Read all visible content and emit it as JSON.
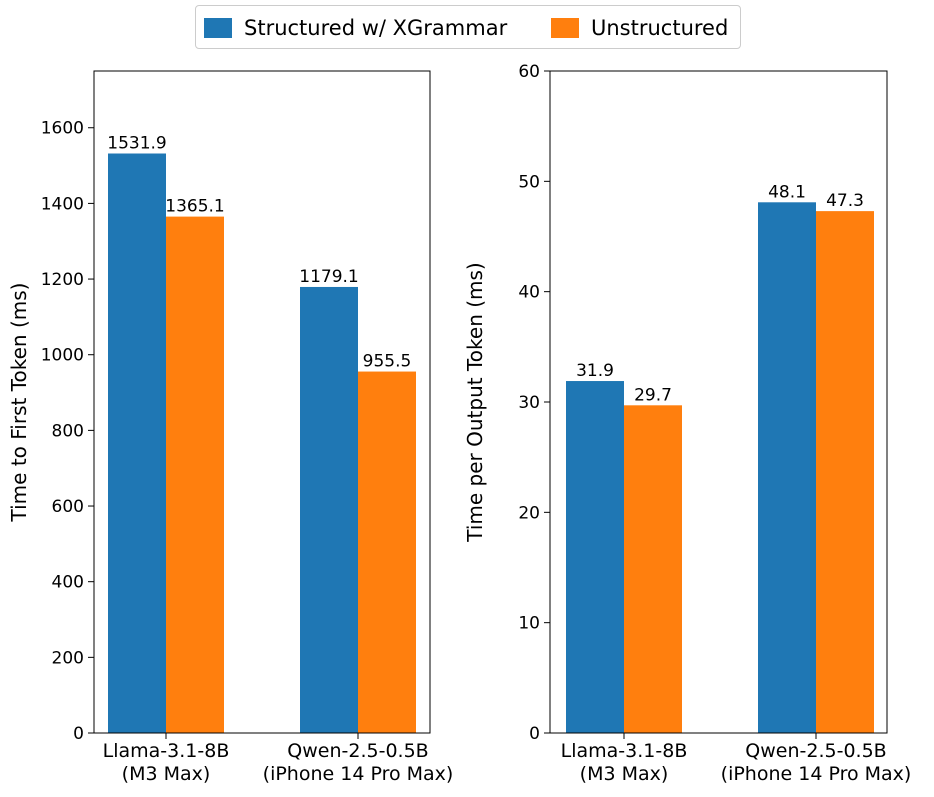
{
  "colors": {
    "structured": "#1f77b4",
    "unstructured": "#ff7f0e"
  },
  "legend": {
    "items": [
      {
        "key": "structured",
        "label": "Structured w/ XGrammar"
      },
      {
        "key": "unstructured",
        "label": "Unstructured"
      }
    ]
  },
  "chart_data": [
    {
      "type": "bar",
      "categories": [
        "Llama-3.1-8B\n(M3 Max)",
        "Qwen-2.5-0.5B\n(iPhone 14 Pro Max)"
      ],
      "series": [
        {
          "name": "Structured w/ XGrammar",
          "key": "structured",
          "values": [
            1531.9,
            1179.1
          ]
        },
        {
          "name": "Unstructured",
          "key": "unstructured",
          "values": [
            1365.1,
            955.5
          ]
        }
      ],
      "data_labels": [
        [
          "1531.9",
          "1179.1"
        ],
        [
          "1365.1",
          "955.5"
        ]
      ],
      "ylabel": "Time to First Token (ms)",
      "xlabel": "",
      "ylim": [
        0,
        1750
      ],
      "yticks": [
        "0",
        "200",
        "400",
        "600",
        "800",
        "1000",
        "1200",
        "1400",
        "1600"
      ]
    },
    {
      "type": "bar",
      "categories": [
        "Llama-3.1-8B\n(M3 Max)",
        "Qwen-2.5-0.5B\n(iPhone 14 Pro Max)"
      ],
      "series": [
        {
          "name": "Structured w/ XGrammar",
          "key": "structured",
          "values": [
            31.9,
            48.1
          ]
        },
        {
          "name": "Unstructured",
          "key": "unstructured",
          "values": [
            29.7,
            47.3
          ]
        }
      ],
      "data_labels": [
        [
          "31.9",
          "48.1"
        ],
        [
          "29.7",
          "47.3"
        ]
      ],
      "ylabel": "Time per Output Token (ms)",
      "xlabel": "",
      "ylim": [
        0,
        60
      ],
      "yticks": [
        "0",
        "10",
        "20",
        "30",
        "40",
        "50",
        "60"
      ]
    }
  ]
}
